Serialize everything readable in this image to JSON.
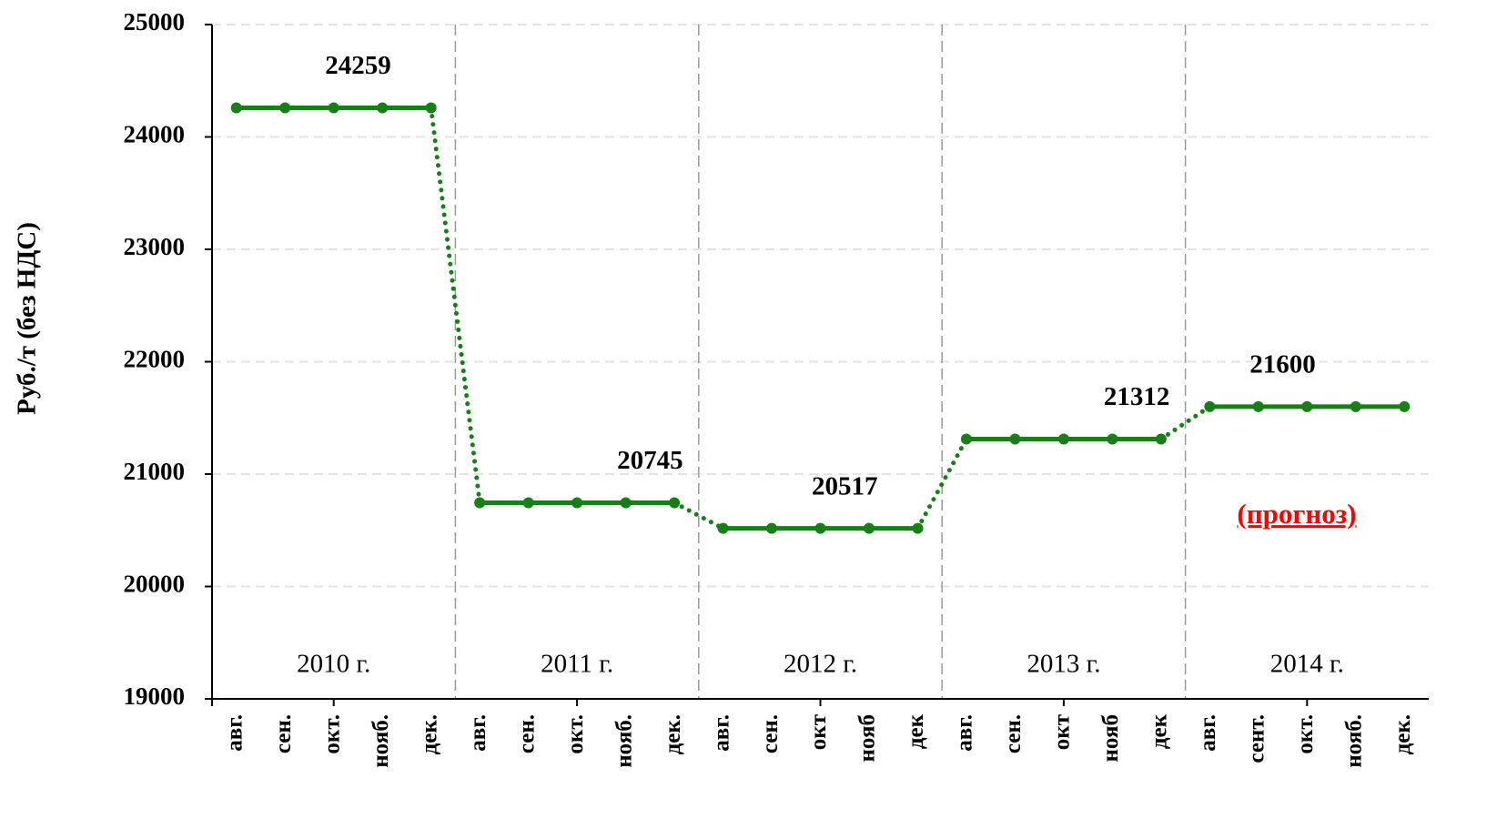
{
  "chart_data": {
    "type": "line",
    "y_label": "Руб./т  (без НДС)",
    "annotation": "(прогноз)",
    "annotation_color": "#ff0000",
    "groups": [
      "2010 г.",
      "2011 г.",
      "2012 г.",
      "2013 г.",
      "2014 г."
    ],
    "categories": [
      "авг.",
      "сен.",
      "окт.",
      "нояб.",
      "дек.",
      "авг.",
      "сен.",
      "окт.",
      "нояб.",
      "дек.",
      "авг.",
      "сен.",
      "окт",
      "нояб",
      "дек",
      "авг.",
      "сен.",
      "окт",
      "нояб",
      "дек",
      "авг.",
      "сент.",
      "окт.",
      "нояб.",
      "дек."
    ],
    "series": [
      {
        "name": "Руб./т",
        "color": "#168016",
        "values": [
          24259,
          24259,
          24259,
          24259,
          24259,
          20745,
          20745,
          20745,
          20745,
          20745,
          20517,
          20517,
          20517,
          20517,
          20517,
          21312,
          21312,
          21312,
          21312,
          21312,
          21600,
          21600,
          21600,
          21600,
          21600
        ],
        "value_labels": [
          null,
          null,
          "24259",
          null,
          null,
          null,
          null,
          null,
          "20745",
          null,
          null,
          null,
          "20517",
          null,
          null,
          null,
          null,
          null,
          "21312",
          null,
          null,
          "21600",
          null,
          null,
          null
        ]
      }
    ],
    "ylim": [
      19000,
      25000
    ],
    "yticks": [
      19000,
      20000,
      21000,
      22000,
      23000,
      24000,
      25000
    ],
    "grid": true
  }
}
